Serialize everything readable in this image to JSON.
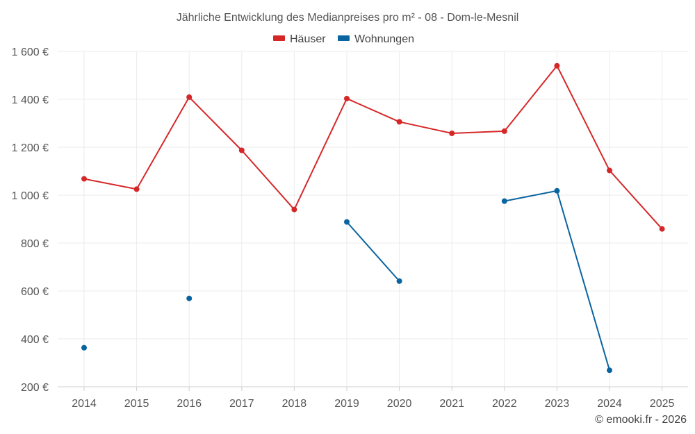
{
  "chart_data": {
    "type": "line",
    "title": "Jährliche Entwicklung des Medianpreises pro m² - 08 - Dom-le-Mesnil",
    "xlabel": "",
    "ylabel": "",
    "x": [
      "2014",
      "2015",
      "2016",
      "2017",
      "2018",
      "2019",
      "2020",
      "2021",
      "2022",
      "2023",
      "2024",
      "2025"
    ],
    "ylim": [
      200,
      1600
    ],
    "yticks": [
      200,
      400,
      600,
      800,
      1000,
      1200,
      1400,
      1600
    ],
    "ytick_labels": [
      "200 €",
      "400 €",
      "600 €",
      "800 €",
      "1 000 €",
      "1 200 €",
      "1 400 €",
      "1 600 €"
    ],
    "grid": true,
    "legend_position": "top-center",
    "series": [
      {
        "name": "Häuser",
        "color": "#d62728",
        "values": [
          1068,
          1025,
          1409,
          1187,
          940,
          1403,
          1306,
          1258,
          1267,
          1540,
          1103,
          859
        ]
      },
      {
        "name": "Wohnungen",
        "color": "#0a64a0",
        "values": [
          363,
          null,
          569,
          null,
          null,
          888,
          641,
          null,
          975,
          1018,
          269,
          null
        ]
      }
    ]
  },
  "credit": "© emooki.fr - 2026"
}
